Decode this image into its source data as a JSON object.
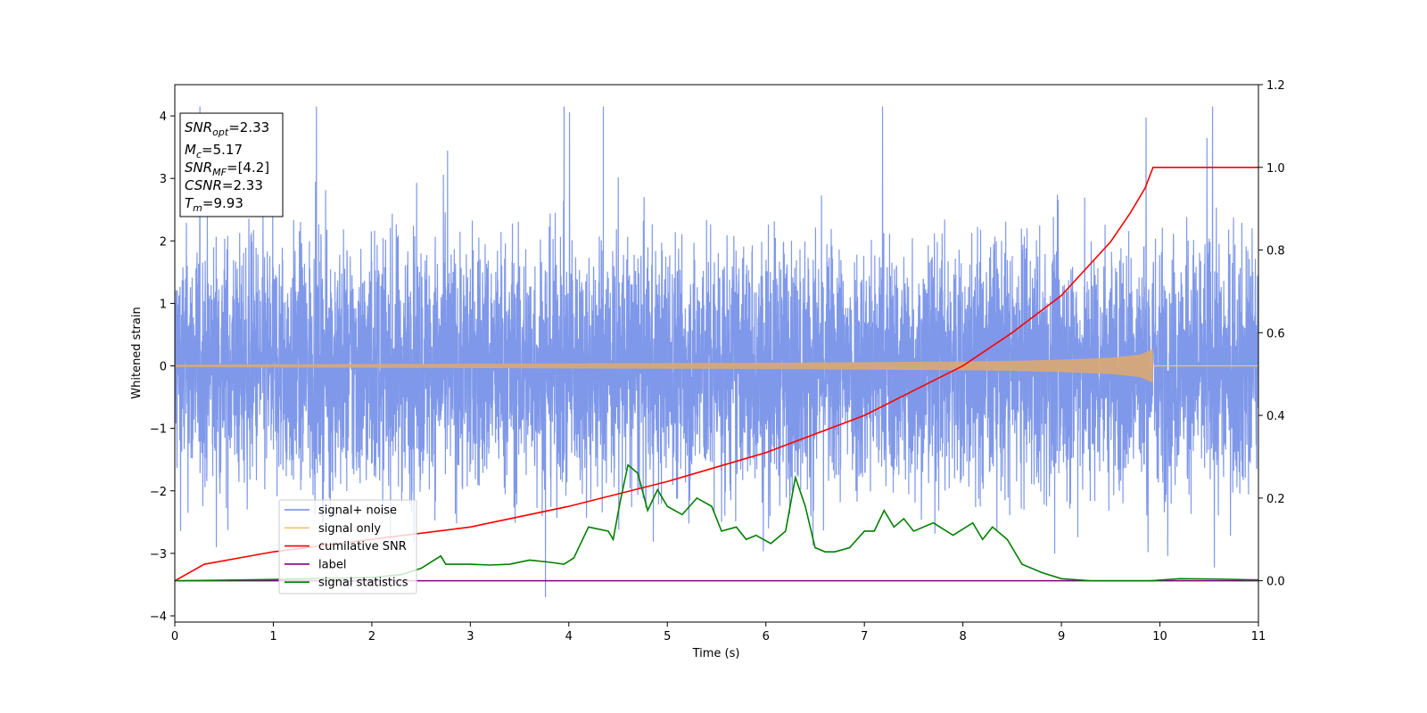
{
  "chart_data": {
    "type": "line",
    "xlabel": "Time (s)",
    "ylabel": "Whitened strain",
    "xlim": [
      0,
      11
    ],
    "ylim": [
      -4.1,
      4.5
    ],
    "y2lim": [
      -0.1,
      1.2
    ],
    "x_ticks": [
      "0",
      "1",
      "2",
      "3",
      "4",
      "5",
      "6",
      "7",
      "8",
      "9",
      "10",
      "11"
    ],
    "y_ticks": [
      "−4",
      "−3",
      "−2",
      "−1",
      "0",
      "1",
      "2",
      "3",
      "4"
    ],
    "y2_ticks": [
      "0.0",
      "0.2",
      "0.4",
      "0.6",
      "0.8",
      "1.0",
      "1.2"
    ],
    "info_box": {
      "snr_opt": {
        "base": "SNR",
        "sub": "opt",
        "value": "=2.33"
      },
      "mc": {
        "base": "M",
        "sub": "c",
        "value": "=5.17"
      },
      "snr_mf": {
        "base": "SNR",
        "sub": "MF",
        "value": "=[4.2]"
      },
      "csnr": {
        "base": "CSNR",
        "value": "=2.33"
      },
      "tm": {
        "base": "T",
        "sub": "m",
        "value": "=9.93"
      }
    },
    "legend": {
      "placement": "lower-left",
      "entries": [
        {
          "label": "signal+ noise",
          "color": "#6f8be6"
        },
        {
          "label": "signal only",
          "color": "#f5c16c"
        },
        {
          "label": "cumilative SNR",
          "color": "#ff0000"
        },
        {
          "label": "label",
          "color": "#800080"
        },
        {
          "label": "signal statistics",
          "color": "#008000"
        }
      ]
    },
    "series": [
      {
        "name": "signal+ noise",
        "color": "#7892e8",
        "axis": "left",
        "description_values": {
          "noise_std": 1.0,
          "typical_peak": 3.3,
          "max_value": 4.15,
          "min_value": -3.7
        }
      },
      {
        "name": "signal only",
        "color": "#d8a878",
        "axis": "left",
        "envelope_points": [
          [
            0,
            0.02
          ],
          [
            2,
            0.03
          ],
          [
            4,
            0.04
          ],
          [
            6,
            0.05
          ],
          [
            7,
            0.06
          ],
          [
            8,
            0.07
          ],
          [
            8.5,
            0.08
          ],
          [
            9,
            0.1
          ],
          [
            9.5,
            0.13
          ],
          [
            9.8,
            0.18
          ],
          [
            9.9,
            0.25
          ],
          [
            9.93,
            0.27
          ]
        ]
      },
      {
        "name": "cumilative SNR",
        "color": "#ff0000",
        "axis": "right",
        "points": [
          [
            0,
            0.0
          ],
          [
            0.3,
            0.04
          ],
          [
            1,
            0.07
          ],
          [
            2,
            0.1
          ],
          [
            3,
            0.13
          ],
          [
            4,
            0.18
          ],
          [
            5,
            0.24
          ],
          [
            6,
            0.31
          ],
          [
            7,
            0.4
          ],
          [
            8,
            0.52
          ],
          [
            8.5,
            0.6
          ],
          [
            9,
            0.69
          ],
          [
            9.5,
            0.82
          ],
          [
            9.7,
            0.89
          ],
          [
            9.85,
            0.95
          ],
          [
            9.93,
            1.0
          ],
          [
            11,
            1.0
          ]
        ]
      },
      {
        "name": "label",
        "color": "#800080",
        "axis": "right",
        "points": [
          [
            0,
            0.0
          ],
          [
            11,
            0.0
          ]
        ]
      },
      {
        "name": "signal statistics",
        "color": "#008000",
        "axis": "right",
        "points": [
          [
            0,
            0.0
          ],
          [
            1,
            0.003
          ],
          [
            2,
            0.008
          ],
          [
            2.3,
            0.015
          ],
          [
            2.5,
            0.03
          ],
          [
            2.7,
            0.06
          ],
          [
            2.75,
            0.04
          ],
          [
            3,
            0.04
          ],
          [
            3.2,
            0.038
          ],
          [
            3.4,
            0.04
          ],
          [
            3.6,
            0.05
          ],
          [
            3.8,
            0.045
          ],
          [
            3.95,
            0.04
          ],
          [
            4.05,
            0.055
          ],
          [
            4.2,
            0.13
          ],
          [
            4.4,
            0.12
          ],
          [
            4.45,
            0.1
          ],
          [
            4.52,
            0.19
          ],
          [
            4.6,
            0.28
          ],
          [
            4.7,
            0.26
          ],
          [
            4.8,
            0.17
          ],
          [
            4.9,
            0.22
          ],
          [
            5.0,
            0.18
          ],
          [
            5.15,
            0.16
          ],
          [
            5.3,
            0.2
          ],
          [
            5.45,
            0.18
          ],
          [
            5.55,
            0.12
          ],
          [
            5.7,
            0.13
          ],
          [
            5.8,
            0.1
          ],
          [
            5.9,
            0.11
          ],
          [
            6.05,
            0.09
          ],
          [
            6.2,
            0.12
          ],
          [
            6.3,
            0.25
          ],
          [
            6.4,
            0.18
          ],
          [
            6.5,
            0.08
          ],
          [
            6.6,
            0.07
          ],
          [
            6.7,
            0.07
          ],
          [
            6.85,
            0.08
          ],
          [
            7.0,
            0.12
          ],
          [
            7.1,
            0.12
          ],
          [
            7.2,
            0.17
          ],
          [
            7.3,
            0.13
          ],
          [
            7.4,
            0.15
          ],
          [
            7.5,
            0.12
          ],
          [
            7.7,
            0.14
          ],
          [
            7.9,
            0.11
          ],
          [
            8.1,
            0.14
          ],
          [
            8.2,
            0.1
          ],
          [
            8.3,
            0.13
          ],
          [
            8.45,
            0.1
          ],
          [
            8.6,
            0.04
          ],
          [
            8.8,
            0.02
          ],
          [
            9.0,
            0.005
          ],
          [
            9.3,
            0.0
          ],
          [
            9.9,
            0.0
          ],
          [
            10.2,
            0.005
          ],
          [
            10.6,
            0.004
          ],
          [
            11,
            0.002
          ]
        ]
      }
    ],
    "grid": false
  }
}
